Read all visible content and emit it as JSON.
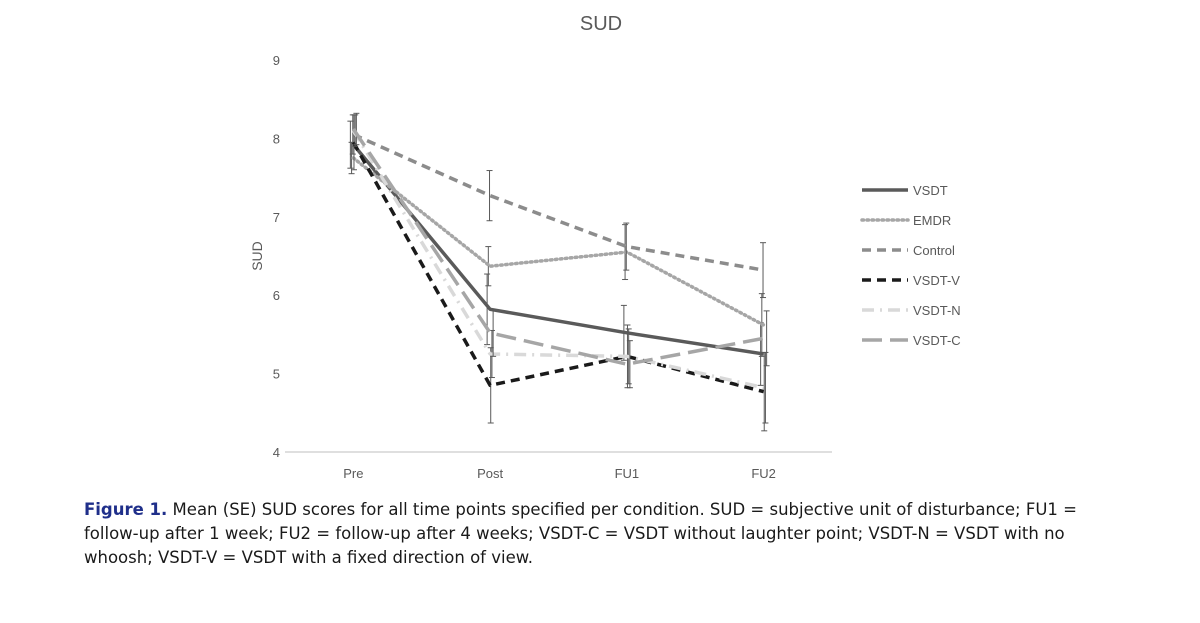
{
  "chart_data": {
    "type": "line",
    "title": "SUD",
    "xlabel": "",
    "ylabel": "SUD",
    "categories": [
      "Pre",
      "Post",
      "FU1",
      "FU2"
    ],
    "ylim": [
      4,
      9
    ],
    "yticks": [
      4,
      5,
      6,
      7,
      8,
      9
    ],
    "grid": false,
    "legend_position": "right",
    "series": [
      {
        "name": "VSDT",
        "values": [
          7.92,
          5.82,
          5.52,
          5.25
        ],
        "errors": [
          0.3,
          0.45,
          0.35,
          0.4
        ],
        "color": "#5a5a5a",
        "style": "solid"
      },
      {
        "name": "EMDR",
        "values": [
          7.75,
          6.37,
          6.55,
          5.62
        ],
        "errors": [
          0.2,
          0.25,
          0.35,
          0.4
        ],
        "color": "#a6a6a6",
        "style": "dotted"
      },
      {
        "name": "Control",
        "values": [
          8.05,
          7.27,
          6.62,
          6.32
        ],
        "errors": [
          0.25,
          0.32,
          0.3,
          0.35
        ],
        "color": "#8c8c8c",
        "style": "dashed"
      },
      {
        "name": "VSDT-V",
        "values": [
          7.95,
          4.85,
          5.22,
          4.77
        ],
        "errors": [
          0.35,
          0.48,
          0.4,
          0.5
        ],
        "color": "#1a1a1a",
        "style": "dashed"
      },
      {
        "name": "VSDT-N",
        "values": [
          8.1,
          5.25,
          5.22,
          4.82
        ],
        "errors": [
          0.2,
          0.3,
          0.35,
          0.45
        ],
        "color": "#d9d9d9",
        "style": "dashdot"
      },
      {
        "name": "VSDT-C",
        "values": [
          8.12,
          5.52,
          5.12,
          5.45
        ],
        "errors": [
          0.2,
          0.3,
          0.3,
          0.35
        ],
        "color": "#a6a6a6",
        "style": "longdash"
      }
    ]
  },
  "caption": {
    "label": "Figure 1.",
    "text": " Mean (SE) SUD scores for all time points specified per condition. SUD = subjective unit of disturbance; FU1 = follow-up after 1 week; FU2 = follow-up after 4 weeks; VSDT-C = VSDT without laughter point; VSDT-N = VSDT with no whoosh; VSDT-V = VSDT with a fixed direction of view."
  }
}
